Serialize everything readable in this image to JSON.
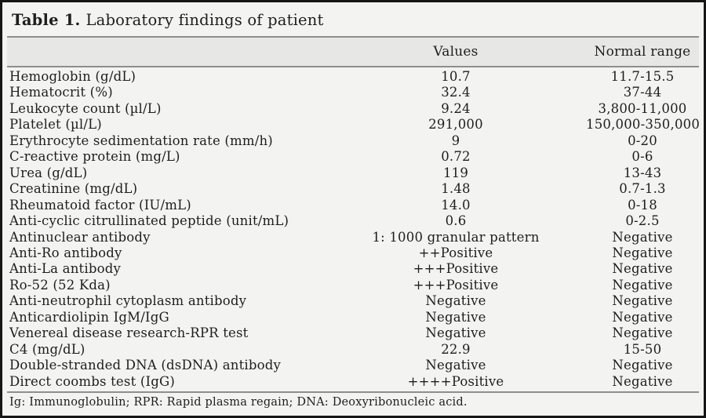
{
  "title": {
    "label": "Table 1.",
    "text": "Laboratory findings of patient"
  },
  "table": {
    "columns": {
      "parameter": "",
      "values": "Values",
      "range": "Normal range"
    },
    "rows": [
      {
        "label": "Hemoglobin (g/dL)",
        "value": "10.7",
        "range": "11.7-15.5"
      },
      {
        "label": "Hematocrit (%)",
        "value": "32.4",
        "range": "37-44"
      },
      {
        "label": "Leukocyte count (µl/L)",
        "value": "9.24",
        "range": "3,800-11,000"
      },
      {
        "label": "Platelet (µl/L)",
        "value": "291,000",
        "range": "150,000-350,000"
      },
      {
        "label": "Erythrocyte sedimentation rate (mm/h)",
        "value": "9",
        "range": "0-20"
      },
      {
        "label": "C-reactive protein (mg/L)",
        "value": "0.72",
        "range": "0-6"
      },
      {
        "label": "Urea (g/dL)",
        "value": "119",
        "range": "13-43"
      },
      {
        "label": "Creatinine (mg/dL)",
        "value": "1.48",
        "range": "0.7-1.3"
      },
      {
        "label": "Rheumatoid factor (IU/mL)",
        "value": "14.0",
        "range": "0-18"
      },
      {
        "label": "Anti-cyclic citrullinated peptide (unit/mL)",
        "value": "0.6",
        "range": "0-2.5"
      },
      {
        "label": "Antinuclear antibody",
        "value": "1: 1000 granular pattern",
        "range": "Negative"
      },
      {
        "label": "Anti-Ro antibody",
        "value": "++Positive",
        "range": "Negative"
      },
      {
        "label": "Anti-La antibody",
        "value": "+++Positive",
        "range": "Negative"
      },
      {
        "label": "Ro-52 (52 Kda)",
        "value": "+++Positive",
        "range": "Negative"
      },
      {
        "label": "Anti-neutrophil cytoplasm antibody",
        "value": "Negative",
        "range": "Negative"
      },
      {
        "label": "Anticardiolipin IgM/IgG",
        "value": "Negative",
        "range": "Negative"
      },
      {
        "label": "Venereal disease research-RPR test",
        "value": "Negative",
        "range": "Negative"
      },
      {
        "label": "C4 (mg/dL)",
        "value": "22.9",
        "range": "15-50"
      },
      {
        "label": "Double-stranded DNA (dsDNA) antibody",
        "value": "Negative",
        "range": "Negative"
      },
      {
        "label": "Direct coombs test (IgG)",
        "value": "++++Positive",
        "range": "Negative"
      }
    ]
  },
  "footnote": "Ig: Immunoglobulin; RPR: Rapid plasma regain; DNA: Deoxyribonucleic acid.",
  "colors": {
    "background": "#f3f3f1",
    "header_background": "#e7e7e5",
    "rule": "#8e8e8e",
    "border": "#161616",
    "text": "#1e1e1e"
  }
}
